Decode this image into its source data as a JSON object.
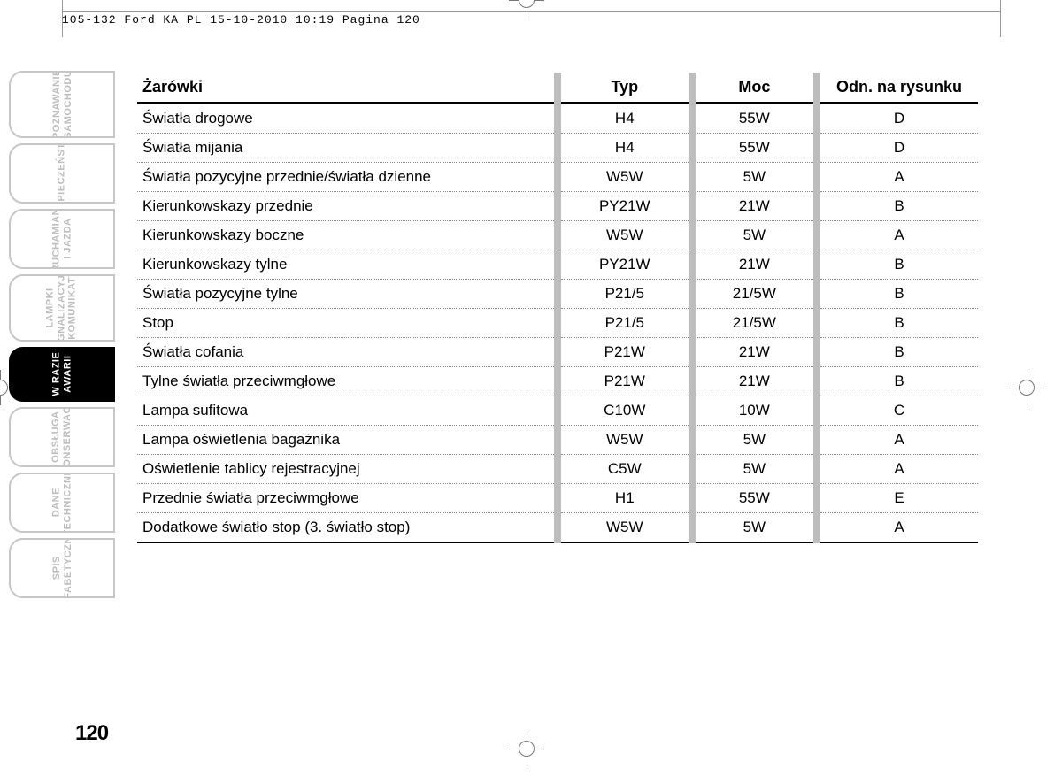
{
  "crop_header": "105-132 Ford KA PL  15-10-2010  10:19  Pagina 120",
  "page_number": "120",
  "sidebar": {
    "tabs": [
      {
        "label": "POZNAWANIE\nSAMOCHODU",
        "active": false,
        "size": "med"
      },
      {
        "label": "BEZPIECZEŃSTWO",
        "active": false,
        "size": "sm-med"
      },
      {
        "label": "URUCHAMIANIE\nI JAZDA",
        "active": false,
        "size": "sm-med"
      },
      {
        "label": "LAMPKI\nSYGNALIZACYJNE\nI KOMUNIKATY",
        "active": false,
        "size": "med"
      },
      {
        "label": "W RAZIE\nAWARII",
        "active": true,
        "size": "small"
      },
      {
        "label": "OBSŁUGA\nI KONSERWACJA",
        "active": false,
        "size": "sm-med"
      },
      {
        "label": "DANE\nTECHNICZNE",
        "active": false,
        "size": "sm-med"
      },
      {
        "label": "SPIS\nAFABETYCZNY",
        "active": false,
        "size": "sm-med"
      }
    ]
  },
  "table": {
    "headers": [
      "Żarówki",
      "Typ",
      "Moc",
      "Odn. na rysunku"
    ],
    "rows": [
      [
        "Światła drogowe",
        "H4",
        "55W",
        "D"
      ],
      [
        "Światła mijania",
        "H4",
        "55W",
        "D"
      ],
      [
        "Światła pozycyjne przednie/światła dzienne",
        "W5W",
        "5W",
        "A"
      ],
      [
        "Kierunkowskazy przednie",
        "PY21W",
        "21W",
        "B"
      ],
      [
        "Kierunkowskazy boczne",
        "W5W",
        "5W",
        "A"
      ],
      [
        "Kierunkowskazy tylne",
        "PY21W",
        "21W",
        "B"
      ],
      [
        "Światła pozycyjne tylne",
        "P21/5",
        "21/5W",
        "B"
      ],
      [
        "Stop",
        "P21/5",
        "21/5W",
        "B"
      ],
      [
        "Światła cofania",
        "P21W",
        "21W",
        "B"
      ],
      [
        "Tylne światła przeciwmgłowe",
        "P21W",
        "21W",
        "B"
      ],
      [
        "Lampa sufitowa",
        "C10W",
        "10W",
        "C"
      ],
      [
        "Lampa oświetlenia bagażnika",
        "W5W",
        "5W",
        "A"
      ],
      [
        "Oświetlenie tablicy rejestracyjnej",
        "C5W",
        "5W",
        "A"
      ],
      [
        "Przednie światła przeciwmgłowe",
        "H1",
        "55W",
        "E"
      ],
      [
        "Dodatkowe światło stop (3. światło stop)",
        "W5W",
        "5W",
        "A"
      ]
    ]
  },
  "colors": {
    "tab_border": "#c6c6c6",
    "tab_text_inactive": "#bdbdbd",
    "tab_active_bg": "#000000",
    "tab_active_text": "#ffffff",
    "table_sep": "#bdbdbd",
    "text": "#000000"
  }
}
